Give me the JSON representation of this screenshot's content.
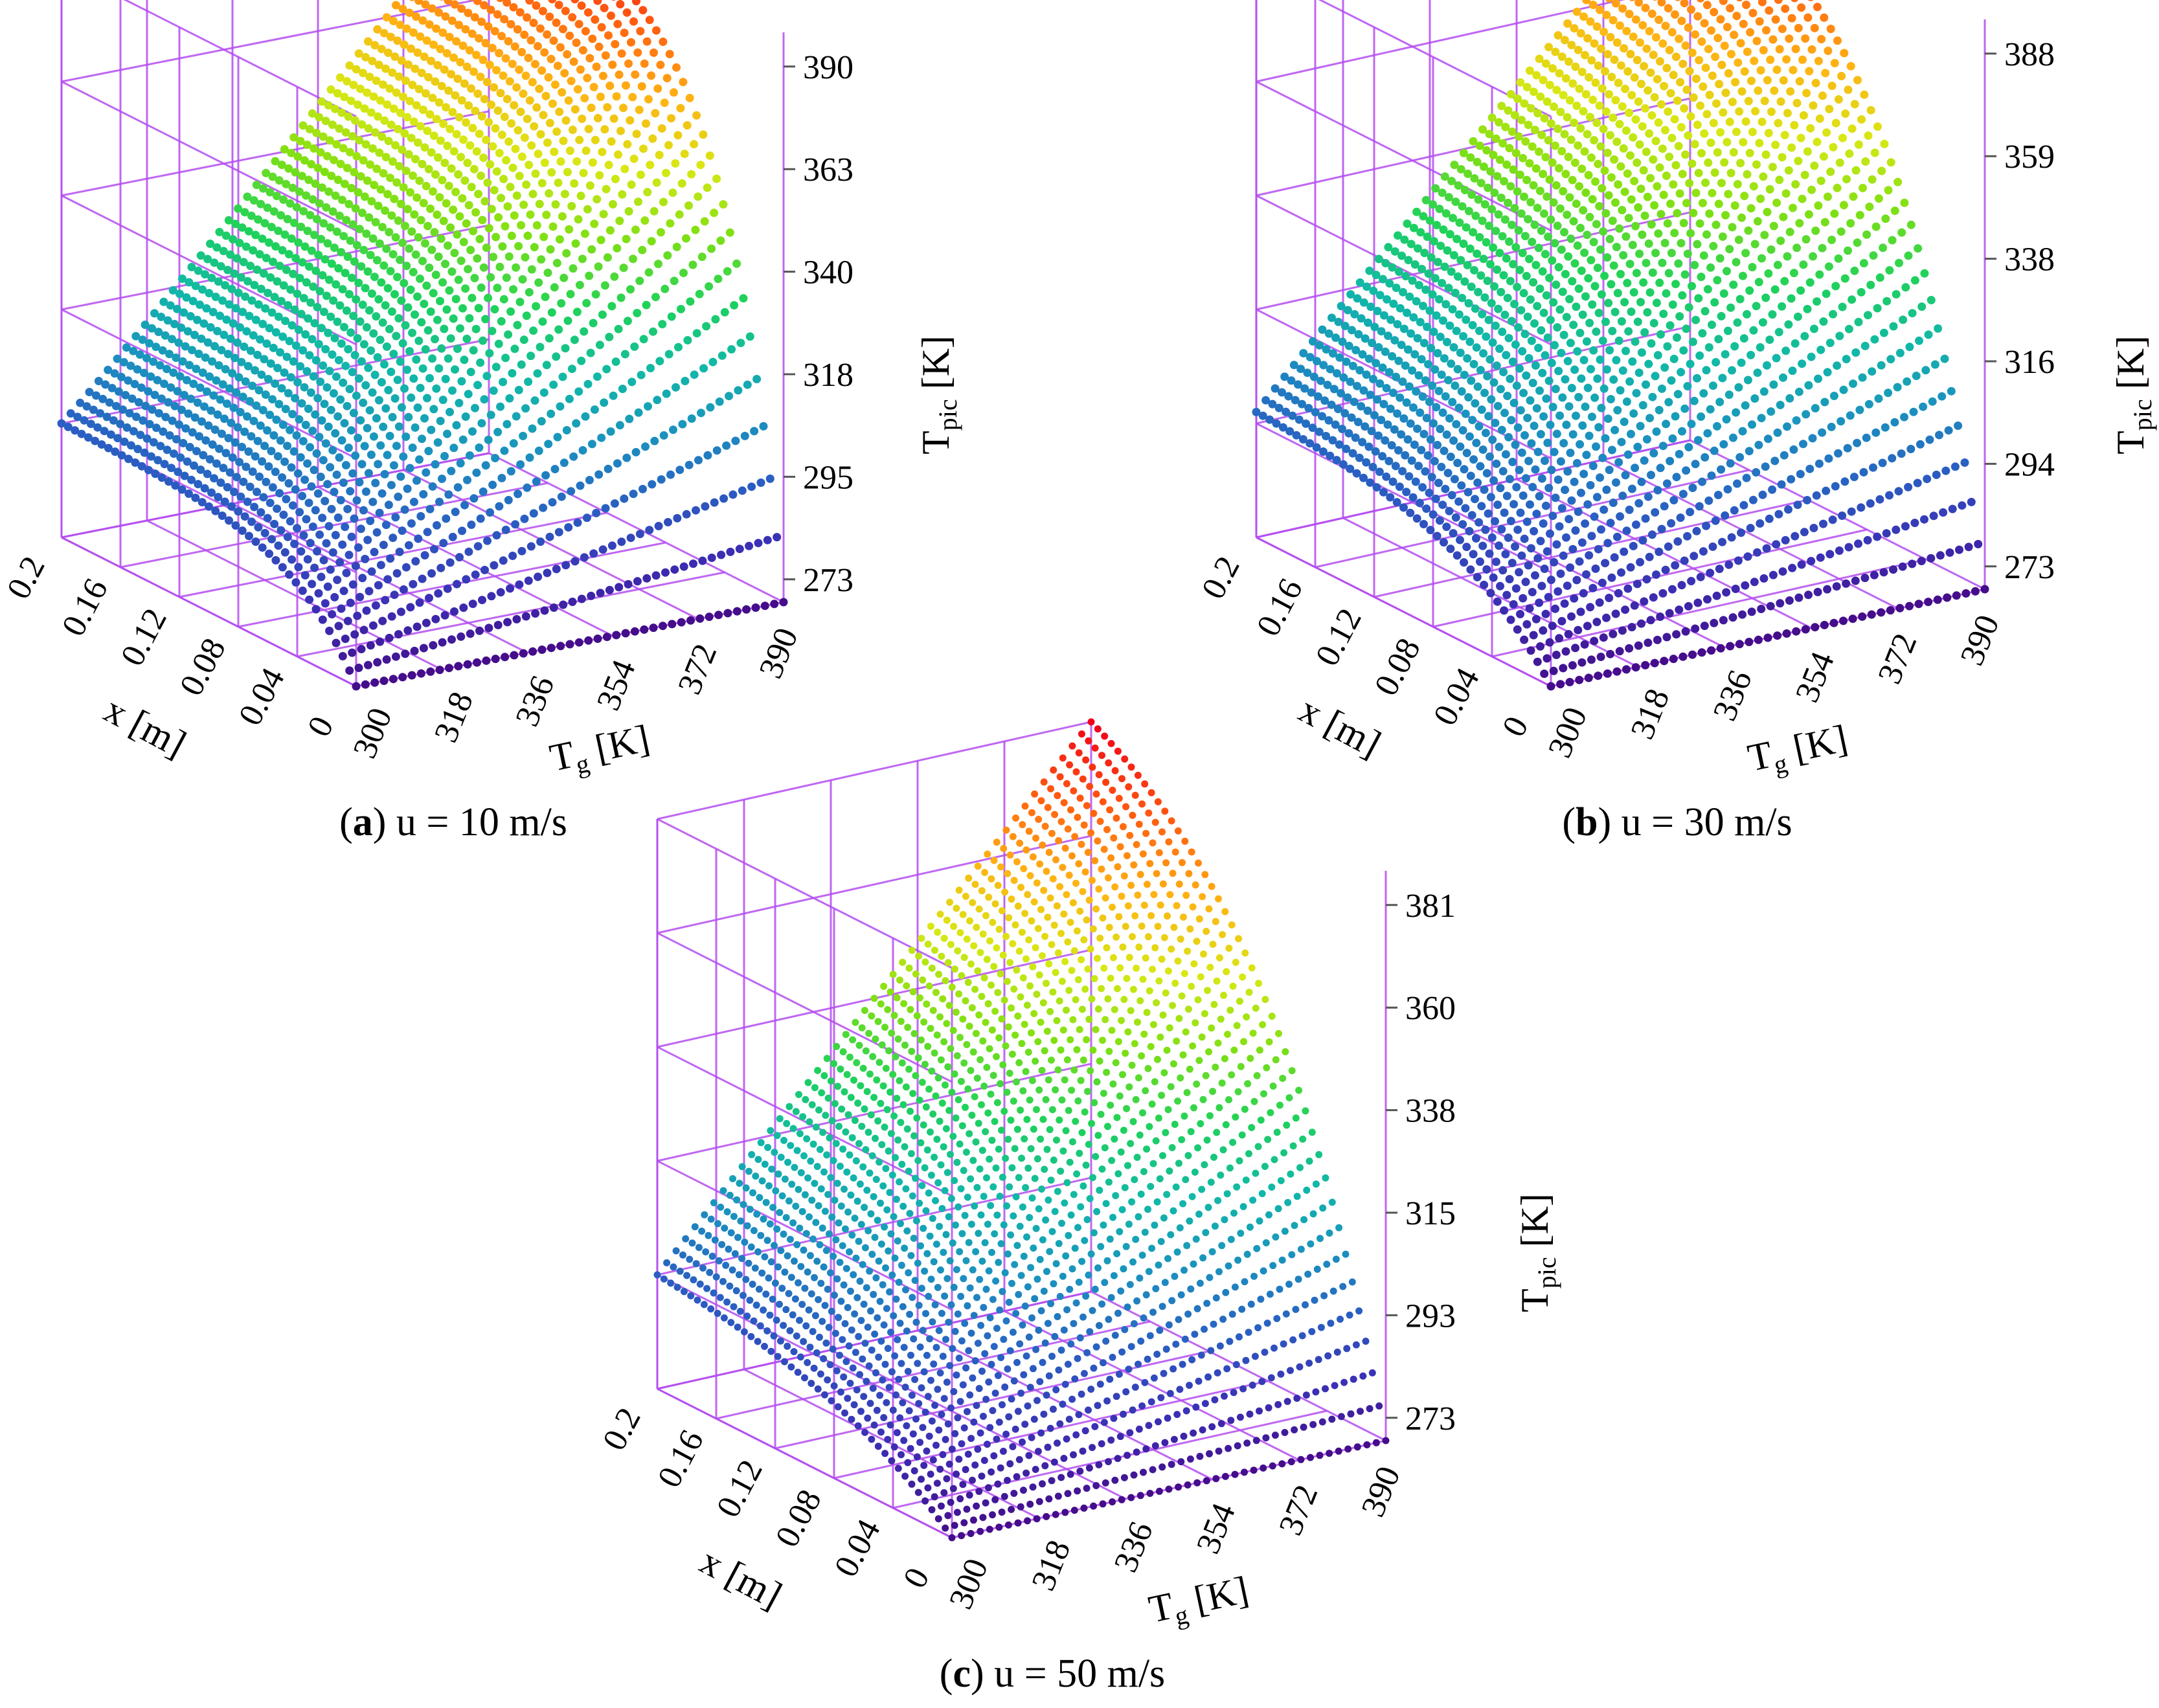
{
  "colors": {
    "grid": "#b44cf0",
    "colormap": [
      "#440d8a",
      "#3b2fb4",
      "#2a5ec2",
      "#1b91bf",
      "#11b8a8",
      "#1fd25a",
      "#7fe013",
      "#d8e814",
      "#ffb314",
      "#ff5a10",
      "#f0001a"
    ]
  },
  "chart_data": [
    {
      "type": "scatter3d",
      "panel": "a",
      "caption_letter": "a",
      "caption_text": "u = 10 m/s",
      "x_axis": {
        "label_main": "x",
        "label_unit": "[m]",
        "ticks": [
          "0.2",
          "0.16",
          "0.12",
          "0.08",
          "0.04",
          "0"
        ],
        "range": [
          0,
          0.2
        ]
      },
      "tg_axis": {
        "label_main": "T",
        "label_sub": "g",
        "label_unit": "[K]",
        "ticks": [
          "300",
          "318",
          "336",
          "354",
          "372",
          "390"
        ],
        "range": [
          300,
          390
        ]
      },
      "z_axis": {
        "label_main": "T",
        "label_sub": "pic",
        "label_unit": "[K]",
        "ticks": [
          "390",
          "363",
          "340",
          "318",
          "295",
          "273"
        ],
        "range": [
          273,
          390
        ]
      },
      "surface_corners_K": {
        "x0_tg300": 273,
        "x0_tg390": 273,
        "x02_tg300": 300,
        "x02_tg390": 390
      },
      "colorscale": "jet-like (purple = low, red = high)"
    },
    {
      "type": "scatter3d",
      "panel": "b",
      "caption_letter": "b",
      "caption_text": "u = 30 m/s",
      "x_axis": {
        "label_main": "x",
        "label_unit": "[m]",
        "ticks": [
          "0.2",
          "0.16",
          "0.12",
          "0.08",
          "0.04",
          "0"
        ],
        "range": [
          0,
          0.2
        ]
      },
      "tg_axis": {
        "label_main": "T",
        "label_sub": "g",
        "label_unit": "[K]",
        "ticks": [
          "300",
          "318",
          "336",
          "354",
          "372",
          "390"
        ],
        "range": [
          300,
          390
        ]
      },
      "z_axis": {
        "label_main": "T",
        "label_sub": "pic",
        "label_unit": "[K]",
        "ticks": [
          "388",
          "359",
          "338",
          "316",
          "294",
          "273"
        ],
        "range": [
          273,
          388
        ]
      },
      "surface_corners_K": {
        "x0_tg300": 273,
        "x0_tg390": 273,
        "x02_tg300": 300,
        "x02_tg390": 388
      },
      "colorscale": "jet-like (purple = low, red = high)"
    },
    {
      "type": "scatter3d",
      "panel": "c",
      "caption_letter": "c",
      "caption_text": "u = 50 m/s",
      "x_axis": {
        "label_main": "x",
        "label_unit": "[m]",
        "ticks": [
          "0.2",
          "0.16",
          "0.12",
          "0.08",
          "0.04",
          "0"
        ],
        "range": [
          0,
          0.2
        ]
      },
      "tg_axis": {
        "label_main": "T",
        "label_sub": "g",
        "label_unit": "[K]",
        "ticks": [
          "300",
          "318",
          "336",
          "354",
          "372",
          "390"
        ],
        "range": [
          300,
          390
        ]
      },
      "z_axis": {
        "label_main": "T",
        "label_sub": "pic",
        "label_unit": "[K]",
        "ticks": [
          "381",
          "360",
          "338",
          "315",
          "293",
          "273"
        ],
        "range": [
          273,
          381
        ]
      },
      "surface_corners_K": {
        "x0_tg300": 273,
        "x0_tg390": 273,
        "x02_tg300": 300,
        "x02_tg390": 381
      },
      "colorscale": "jet-like (purple = low, red = high)"
    }
  ]
}
